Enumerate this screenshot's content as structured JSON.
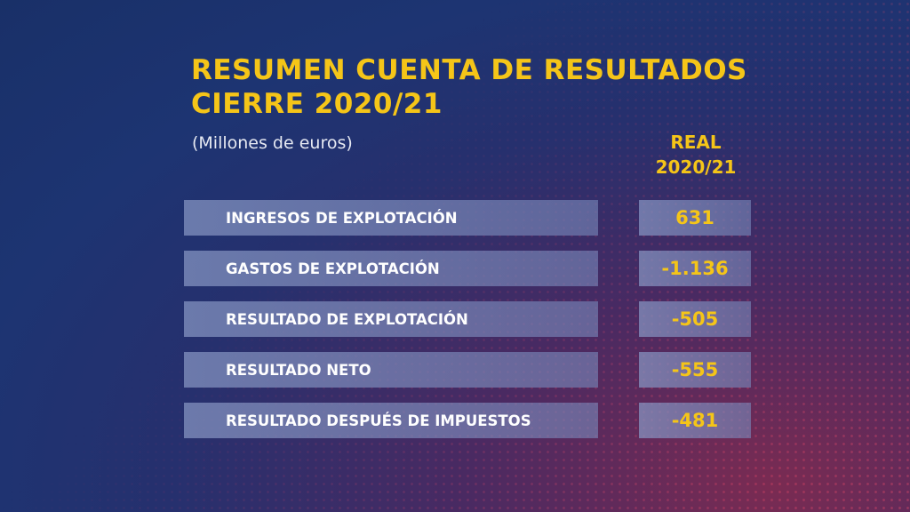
{
  "title_line1": "RESUMEN CUENTA DE RESULTADOS",
  "title_line2": "CIERRE 2020/21",
  "subtitle": "(Millones de euros)",
  "chart_data": {
    "type": "table",
    "title": "RESUMEN CUENTA DE RESULTADOS CIERRE 2020/21",
    "unit": "Millones de euros",
    "column_header_line1": "REAL",
    "column_header_line2": "2020/21",
    "rows": [
      {
        "label": "INGRESOS DE EXPLOTACIÓN",
        "display": "631",
        "value": 631
      },
      {
        "label": "GASTOS DE EXPLOTACIÓN",
        "display": "-1.136",
        "value": -1136
      },
      {
        "label": "RESULTADO DE EXPLOTACIÓN",
        "display": "-505",
        "value": -505
      },
      {
        "label": "RESULTADO NETO",
        "display": "-555",
        "value": -555
      },
      {
        "label": "RESULTADO DESPUÉS DE IMPUESTOS",
        "display": "-481",
        "value": -481
      }
    ]
  },
  "colors": {
    "accent_yellow": "#f5c518",
    "row_background": "#8796c3",
    "background_blue": "#1d3472",
    "background_magenta": "#7a2b52"
  }
}
